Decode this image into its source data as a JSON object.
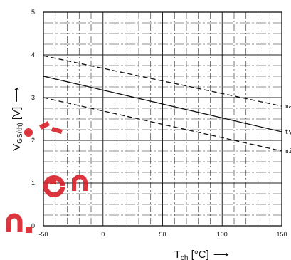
{
  "chart_data": {
    "type": "line",
    "title": "",
    "xlabel": {
      "main": "T",
      "sub": "ch",
      "unit": " [°C]",
      "arrow": "⟶"
    },
    "ylabel": {
      "main": "V",
      "sub": "GS(th)",
      "unit": " [V]",
      "arrow": "⟶"
    },
    "xlim": [
      -50,
      150
    ],
    "ylim": [
      0,
      5
    ],
    "x_ticks": [
      -50,
      0,
      50,
      100,
      150
    ],
    "y_ticks": [
      0,
      1,
      2,
      3,
      4,
      5
    ],
    "grid": true,
    "series": [
      {
        "name": "max",
        "style": "dashed",
        "x": [
          -50,
          150
        ],
        "y": [
          3.98,
          2.8
        ]
      },
      {
        "name": "typ",
        "style": "solid",
        "x": [
          -50,
          150
        ],
        "y": [
          3.5,
          2.2
        ]
      },
      {
        "name": "min",
        "style": "dashed",
        "x": [
          -50,
          150
        ],
        "y": [
          3.0,
          1.75
        ]
      }
    ],
    "series_label_text": [
      "ma",
      "ty",
      "mi"
    ]
  }
}
